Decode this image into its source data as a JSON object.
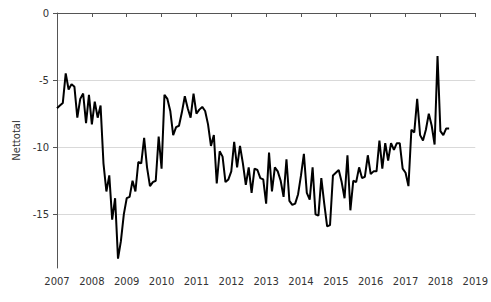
{
  "chart_data": {
    "type": "line",
    "y_label": "Nettotal",
    "color": "#000000",
    "grid": true,
    "xlim": [
      2007,
      2019
    ],
    "xticks": [
      2007,
      2008,
      2009,
      2010,
      2011,
      2012,
      2013,
      2014,
      2015,
      2016,
      2017,
      2018,
      2019
    ],
    "ylim": [
      -19,
      0
    ],
    "yticks": [
      -15,
      -10,
      -5,
      0
    ],
    "x": [
      2007,
      2007.083,
      2007.167,
      2007.25,
      2007.333,
      2007.417,
      2007.5,
      2007.583,
      2007.667,
      2007.75,
      2007.833,
      2007.917,
      2008,
      2008.083,
      2008.167,
      2008.25,
      2008.333,
      2008.417,
      2008.5,
      2008.583,
      2008.667,
      2008.75,
      2008.833,
      2008.917,
      2009,
      2009.083,
      2009.167,
      2009.25,
      2009.333,
      2009.417,
      2009.5,
      2009.583,
      2009.667,
      2009.75,
      2009.833,
      2009.917,
      2010,
      2010.083,
      2010.167,
      2010.25,
      2010.333,
      2010.417,
      2010.5,
      2010.583,
      2010.667,
      2010.75,
      2010.833,
      2010.917,
      2011,
      2011.083,
      2011.167,
      2011.25,
      2011.333,
      2011.417,
      2011.5,
      2011.583,
      2011.667,
      2011.75,
      2011.833,
      2011.917,
      2012,
      2012.083,
      2012.167,
      2012.25,
      2012.333,
      2012.417,
      2012.5,
      2012.583,
      2012.667,
      2012.75,
      2012.833,
      2012.917,
      2013,
      2013.083,
      2013.167,
      2013.25,
      2013.333,
      2013.417,
      2013.5,
      2013.583,
      2013.667,
      2013.75,
      2013.833,
      2013.917,
      2014,
      2014.083,
      2014.167,
      2014.25,
      2014.333,
      2014.417,
      2014.5,
      2014.583,
      2014.667,
      2014.75,
      2014.833,
      2014.917,
      2015,
      2015.083,
      2015.167,
      2015.25,
      2015.333,
      2015.417,
      2015.5,
      2015.583,
      2015.667,
      2015.75,
      2015.833,
      2015.917,
      2016,
      2016.083,
      2016.167,
      2016.25,
      2016.333,
      2016.417,
      2016.5,
      2016.583,
      2016.667,
      2016.75,
      2016.833,
      2016.917,
      2017,
      2017.083,
      2017.167,
      2017.25,
      2017.333,
      2017.417,
      2017.5,
      2017.583,
      2017.667,
      2017.75,
      2017.833,
      2017.917,
      2018,
      2018.083,
      2018.167,
      2018.25
    ],
    "values": [
      -7.1,
      -6.9,
      -6.7,
      -4.5,
      -5.7,
      -5.3,
      -5.5,
      -7.8,
      -6.4,
      -6.0,
      -8.2,
      -6.1,
      -8.3,
      -6.6,
      -7.8,
      -6.9,
      -11.2,
      -13.3,
      -12.1,
      -15.4,
      -13.8,
      -18.3,
      -17.0,
      -15.0,
      -13.8,
      -13.7,
      -12.5,
      -13.3,
      -11.1,
      -11.2,
      -9.3,
      -11.5,
      -12.9,
      -12.6,
      -12.5,
      -9.2,
      -11.6,
      -6.1,
      -6.4,
      -7.3,
      -9.1,
      -8.5,
      -8.4,
      -7.4,
      -6.2,
      -7.1,
      -7.8,
      -6.0,
      -7.5,
      -7.2,
      -7.0,
      -7.3,
      -8.3,
      -9.9,
      -9.1,
      -12.7,
      -10.3,
      -10.7,
      -12.6,
      -12.4,
      -11.8,
      -9.6,
      -11.5,
      -9.9,
      -11.2,
      -12.8,
      -11.5,
      -13.4,
      -11.6,
      -11.7,
      -12.3,
      -12.4,
      -14.2,
      -10.4,
      -13.3,
      -11.5,
      -11.8,
      -12.5,
      -13.7,
      -10.9,
      -14.0,
      -14.3,
      -14.2,
      -13.5,
      -12.1,
      -10.5,
      -13.4,
      -13.9,
      -11.5,
      -15.0,
      -15.1,
      -12.3,
      -14.2,
      -15.9,
      -15.8,
      -12.1,
      -11.9,
      -11.7,
      -12.6,
      -13.8,
      -10.6,
      -14.7,
      -12.5,
      -12.6,
      -11.5,
      -12.3,
      -12.2,
      -10.6,
      -12.0,
      -11.8,
      -11.8,
      -9.5,
      -11.6,
      -9.7,
      -11.0,
      -9.7,
      -10.2,
      -9.7,
      -9.7,
      -11.6,
      -11.9,
      -12.9,
      -8.7,
      -8.9,
      -6.4,
      -9.1,
      -9.5,
      -8.7,
      -7.5,
      -8.4,
      -9.8,
      -3.2,
      -8.8,
      -9.1,
      -8.6,
      -8.6
    ]
  }
}
